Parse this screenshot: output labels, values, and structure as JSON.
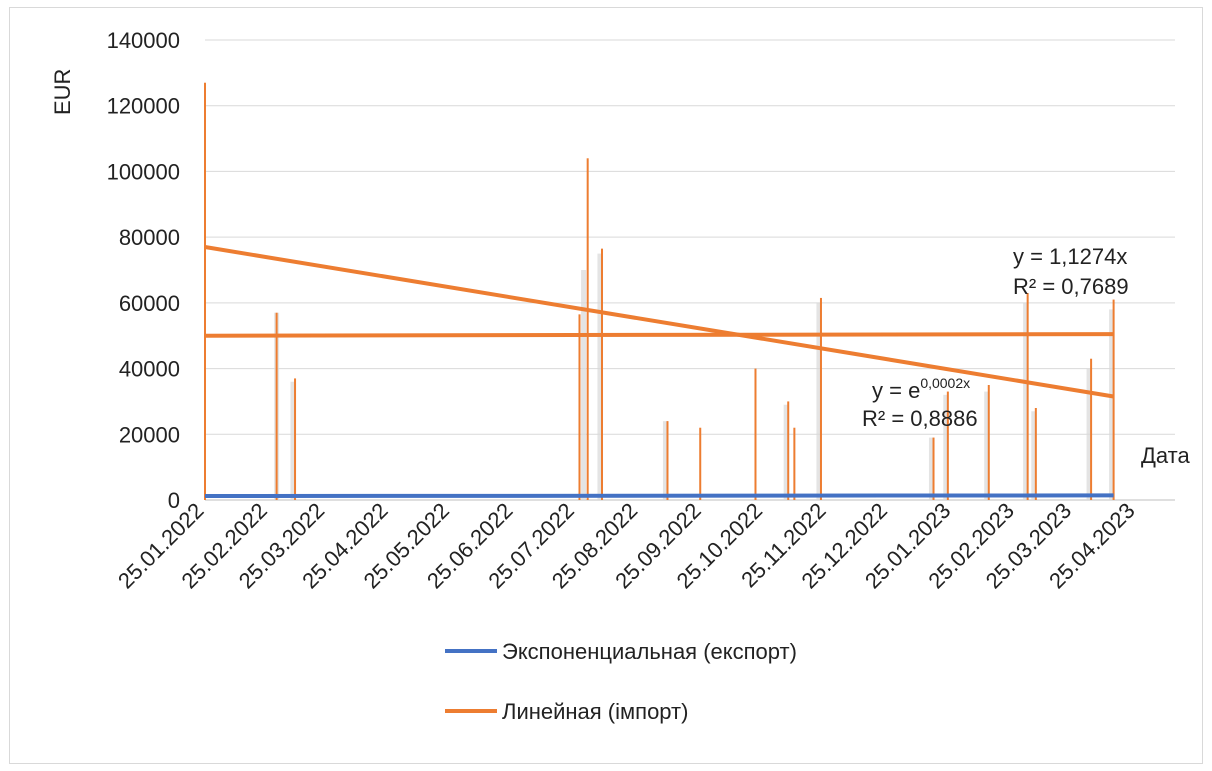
{
  "chart_data": {
    "type": "bar",
    "ylabel": "EUR",
    "xlabel": "Дата",
    "ylim": [
      0,
      140000
    ],
    "y_ticks": [
      "0",
      "20000",
      "40000",
      "60000",
      "80000",
      "100000",
      "120000",
      "140000"
    ],
    "x_ticks": [
      "25.01.2022",
      "25.02.2022",
      "25.03.2022",
      "25.04.2022",
      "25.05.2022",
      "25.06.2022",
      "25.07.2022",
      "25.08.2022",
      "25.09.2022",
      "25.10.2022",
      "25.11.2022",
      "25.12.2022",
      "25.01.2023",
      "25.02.2023",
      "25.03.2023",
      "25.04.2023"
    ],
    "x_range": [
      "2022-01-25",
      "2023-05-14"
    ],
    "grid": true,
    "legend_position": "bottom",
    "series": [
      {
        "name": "",
        "role": "import",
        "color": "#ed7d31",
        "points": [
          {
            "x": "2022-01-25",
            "y": 127000
          },
          {
            "x": "2022-03-01",
            "y": 57000
          },
          {
            "x": "2022-03-10",
            "y": 37000
          },
          {
            "x": "2022-07-27",
            "y": 56500
          },
          {
            "x": "2022-07-31",
            "y": 104000
          },
          {
            "x": "2022-08-07",
            "y": 76500
          },
          {
            "x": "2022-09-08",
            "y": 24000
          },
          {
            "x": "2022-09-24",
            "y": 22000
          },
          {
            "x": "2022-10-21",
            "y": 40000
          },
          {
            "x": "2022-11-06",
            "y": 30000
          },
          {
            "x": "2022-11-09",
            "y": 22000
          },
          {
            "x": "2022-11-22",
            "y": 61500
          },
          {
            "x": "2023-01-16",
            "y": 19000
          },
          {
            "x": "2023-01-23",
            "y": 33000
          },
          {
            "x": "2023-02-12",
            "y": 35000
          },
          {
            "x": "2023-03-03",
            "y": 63000
          },
          {
            "x": "2023-03-07",
            "y": 28000
          },
          {
            "x": "2023-04-03",
            "y": 43000
          },
          {
            "x": "2023-04-14",
            "y": 61000
          }
        ]
      },
      {
        "name": "",
        "role": "export",
        "color": "#d9d9d9",
        "points": [
          {
            "x": "2022-03-01",
            "y": 57000
          },
          {
            "x": "2022-03-09",
            "y": 36000
          },
          {
            "x": "2022-07-29",
            "y": 70000
          },
          {
            "x": "2022-08-06",
            "y": 75000
          },
          {
            "x": "2022-09-07",
            "y": 24000
          },
          {
            "x": "2022-11-05",
            "y": 29000
          },
          {
            "x": "2022-11-21",
            "y": 60000
          },
          {
            "x": "2023-01-15",
            "y": 19000
          },
          {
            "x": "2023-01-22",
            "y": 32000
          },
          {
            "x": "2023-02-11",
            "y": 33000
          },
          {
            "x": "2023-03-02",
            "y": 60000
          },
          {
            "x": "2023-03-06",
            "y": 27000
          },
          {
            "x": "2023-04-02",
            "y": 40000
          },
          {
            "x": "2023-04-13",
            "y": 58000
          }
        ]
      }
    ],
    "trendlines": [
      {
        "name": "Экспоненциальная (експорт)",
        "color": "#4472c4",
        "start": {
          "x": "2022-01-25",
          "y": 1200
        },
        "end": {
          "x": "2023-04-14",
          "y": 1400
        },
        "equation": "y = e",
        "equation_exp": "0,0002x",
        "r2": "R² = 0,8886"
      },
      {
        "name": "Линейная (імпорт)",
        "color": "#ed7d31",
        "start": {
          "x": "2022-01-25",
          "y": 77000
        },
        "end": {
          "x": "2023-04-14",
          "y": 31500
        },
        "equation": "",
        "r2": ""
      },
      {
        "name": "",
        "color": "#ed7d31",
        "start": {
          "x": "2022-01-25",
          "y": 50000
        },
        "end": {
          "x": "2023-04-14",
          "y": 50500
        },
        "equation": "y = 1,1274x",
        "r2": "R² = 0,7689"
      }
    ],
    "legend": [
      {
        "label": "Экспоненциальная (експорт)",
        "color": "#4472c4"
      },
      {
        "label": "Линейная (імпорт)",
        "color": "#ed7d31"
      }
    ]
  }
}
